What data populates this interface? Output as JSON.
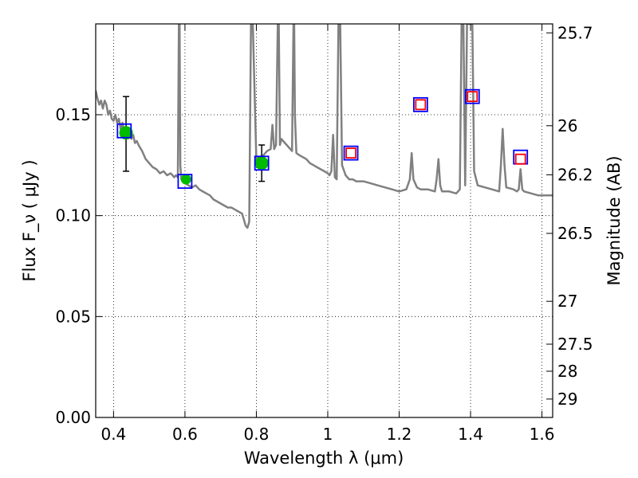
{
  "chart_data": {
    "type": "scatter",
    "xlabel": "Wavelength  λ (μm)",
    "ylabel": "Flux  F_ν  ( μJy )",
    "y2label": "Magnitude (AB)",
    "xlim": [
      0.35,
      1.63
    ],
    "ylim": [
      0.0,
      0.195
    ],
    "grid": true,
    "x_ticks": [
      0.4,
      0.6,
      0.8,
      1.0,
      1.2,
      1.4,
      1.6
    ],
    "x_tick_labels": [
      "0.4",
      "0.6",
      "0.8",
      "1",
      "1.2",
      "1.4",
      "1.6"
    ],
    "y_ticks": [
      0.0,
      0.05,
      0.1,
      0.15
    ],
    "y_tick_labels": [
      "0.00",
      "0.05",
      "0.10",
      "0.15"
    ],
    "mag_ticks": [
      25.7,
      26,
      26.2,
      26.5,
      27,
      27.5,
      28,
      29
    ],
    "mag_tick_labels": [
      "25.7",
      "26",
      "26.2",
      "26.5",
      "27",
      "27.5",
      "28",
      "29"
    ],
    "series": [
      {
        "type": "line",
        "color": "#808080",
        "x": [
          0.35,
          0.355,
          0.36,
          0.365,
          0.37,
          0.375,
          0.38,
          0.385,
          0.39,
          0.395,
          0.4,
          0.405,
          0.41,
          0.415,
          0.42,
          0.425,
          0.43,
          0.435,
          0.44,
          0.445,
          0.45,
          0.455,
          0.46,
          0.465,
          0.47,
          0.48,
          0.49,
          0.5,
          0.51,
          0.52,
          0.53,
          0.54,
          0.55,
          0.56,
          0.57,
          0.575,
          0.58,
          0.583,
          0.585,
          0.587,
          0.59,
          0.6,
          0.61,
          0.62,
          0.63,
          0.64,
          0.65,
          0.66,
          0.67,
          0.68,
          0.69,
          0.7,
          0.71,
          0.72,
          0.73,
          0.74,
          0.75,
          0.76,
          0.765,
          0.77,
          0.775,
          0.78,
          0.785,
          0.79,
          0.8,
          0.81,
          0.82,
          0.83,
          0.84,
          0.845,
          0.85,
          0.855,
          0.86,
          0.863,
          0.866,
          0.87,
          0.88,
          0.89,
          0.9,
          0.904,
          0.906,
          0.908,
          0.912,
          0.92,
          0.93,
          0.94,
          0.95,
          0.96,
          0.97,
          0.98,
          0.99,
          1.0,
          1.005,
          1.01,
          1.015,
          1.02,
          1.025,
          1.03,
          1.035,
          1.04,
          1.05,
          1.06,
          1.07,
          1.08,
          1.1,
          1.12,
          1.14,
          1.16,
          1.18,
          1.2,
          1.22,
          1.23,
          1.235,
          1.24,
          1.25,
          1.26,
          1.28,
          1.3,
          1.305,
          1.31,
          1.315,
          1.32,
          1.34,
          1.36,
          1.37,
          1.375,
          1.38,
          1.385,
          1.39,
          1.395,
          1.4,
          1.405,
          1.41,
          1.42,
          1.44,
          1.46,
          1.48,
          1.485,
          1.49,
          1.495,
          1.5,
          1.52,
          1.53,
          1.535,
          1.54,
          1.545,
          1.55,
          1.57,
          1.59,
          1.61,
          1.63
        ],
        "y": [
          0.162,
          0.158,
          0.155,
          0.157,
          0.153,
          0.157,
          0.155,
          0.15,
          0.152,
          0.148,
          0.147,
          0.15,
          0.146,
          0.148,
          0.143,
          0.146,
          0.141,
          0.144,
          0.14,
          0.142,
          0.138,
          0.14,
          0.136,
          0.137,
          0.135,
          0.132,
          0.128,
          0.126,
          0.124,
          0.123,
          0.121,
          0.122,
          0.12,
          0.121,
          0.119,
          0.12,
          0.119,
          0.195,
          0.195,
          0.125,
          0.118,
          0.116,
          0.115,
          0.114,
          0.115,
          0.113,
          0.112,
          0.111,
          0.11,
          0.108,
          0.107,
          0.106,
          0.105,
          0.104,
          0.104,
          0.103,
          0.102,
          0.101,
          0.098,
          0.095,
          0.094,
          0.097,
          0.195,
          0.195,
          0.128,
          0.129,
          0.13,
          0.132,
          0.133,
          0.145,
          0.133,
          0.135,
          0.195,
          0.195,
          0.135,
          0.138,
          0.136,
          0.134,
          0.132,
          0.195,
          0.195,
          0.15,
          0.131,
          0.13,
          0.129,
          0.128,
          0.126,
          0.125,
          0.124,
          0.123,
          0.122,
          0.121,
          0.12,
          0.122,
          0.14,
          0.119,
          0.118,
          0.195,
          0.195,
          0.125,
          0.12,
          0.118,
          0.118,
          0.117,
          0.117,
          0.116,
          0.115,
          0.114,
          0.113,
          0.112,
          0.113,
          0.118,
          0.131,
          0.118,
          0.114,
          0.113,
          0.113,
          0.112,
          0.118,
          0.128,
          0.115,
          0.112,
          0.112,
          0.111,
          0.113,
          0.195,
          0.195,
          0.115,
          0.195,
          0.195,
          0.195,
          0.195,
          0.122,
          0.115,
          0.114,
          0.113,
          0.112,
          0.125,
          0.143,
          0.125,
          0.114,
          0.113,
          0.112,
          0.113,
          0.123,
          0.113,
          0.112,
          0.111,
          0.11,
          0.11,
          0.11
        ]
      },
      {
        "type": "square",
        "name": "",
        "edgecolor": "#0000ff",
        "x": [
          0.43,
          0.6,
          0.815,
          1.065,
          1.26,
          1.405,
          1.54
        ],
        "y": [
          0.142,
          0.117,
          0.126,
          0.131,
          0.155,
          0.159,
          0.129
        ]
      },
      {
        "type": "square",
        "name": "",
        "edgecolor": "#ff0000",
        "x": [
          1.065,
          1.26,
          1.405,
          1.54
        ],
        "y": [
          0.131,
          0.155,
          0.159,
          0.128
        ]
      },
      {
        "type": "point",
        "color": "#00bb00",
        "x": [
          0.435,
          0.815
        ],
        "y": [
          0.141,
          0.126
        ],
        "err_low": [
          0.122,
          0.117
        ],
        "err_high": [
          0.159,
          0.135
        ]
      },
      {
        "type": "point",
        "color": "#00bb00",
        "x": [
          0.603
        ],
        "y": [
          0.118
        ]
      }
    ]
  }
}
